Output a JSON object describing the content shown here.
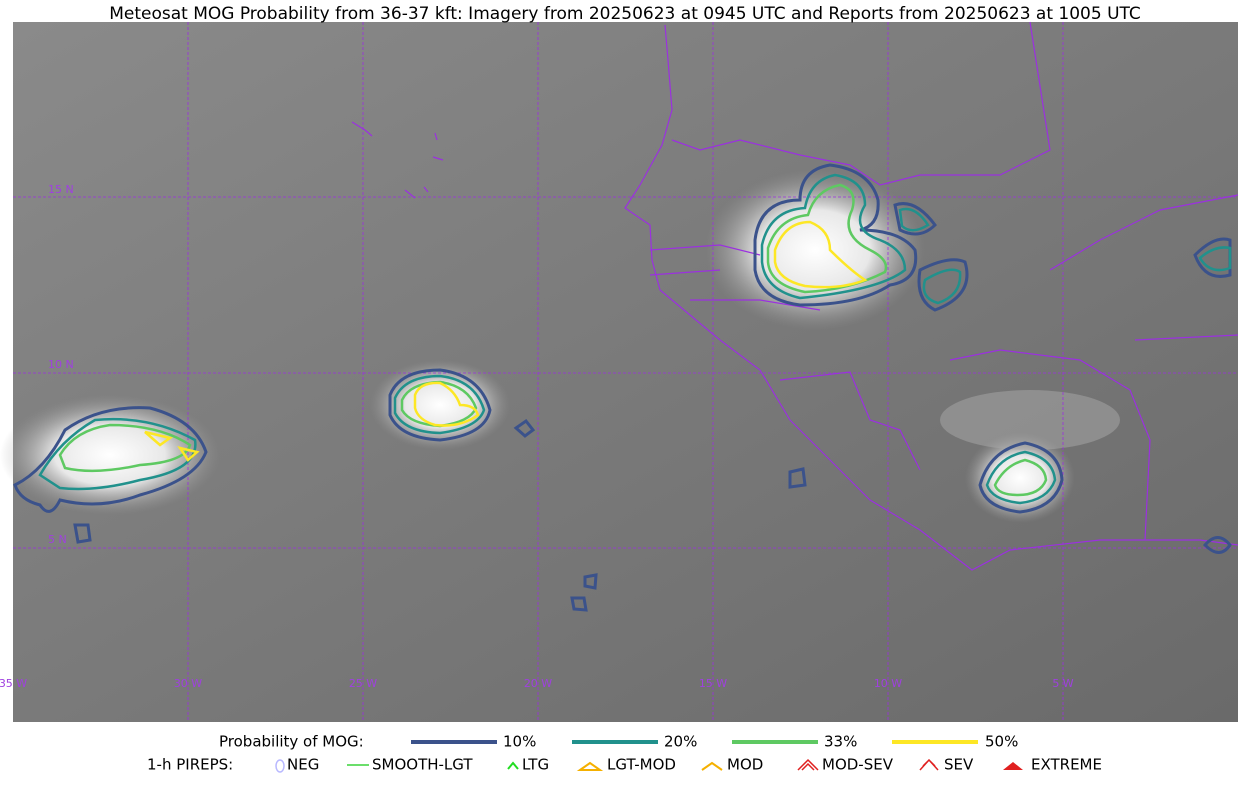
{
  "title": "Meteosat MOG Probability from 36-37 kft: Imagery from 20250623 at 0945 UTC and Reports from 20250623 at 1005 UTC",
  "lat_labels": [
    "15 N",
    "10 N",
    "5 N"
  ],
  "lon_labels": [
    "35 W",
    "30 W",
    "25 W",
    "20 W",
    "15 W",
    "10 W",
    "5 W"
  ],
  "legend": {
    "probability_label": "Probability of MOG:",
    "probability_levels": [
      "10%",
      "20%",
      "33%",
      "50%"
    ],
    "pireps_label": "1-h PIREPS:",
    "pireps": [
      "NEG",
      "SMOOTH-LGT",
      "LTG",
      "LGT-MOD",
      "MOD",
      "MOD-SEV",
      "SEV",
      "EXTREME"
    ]
  }
}
